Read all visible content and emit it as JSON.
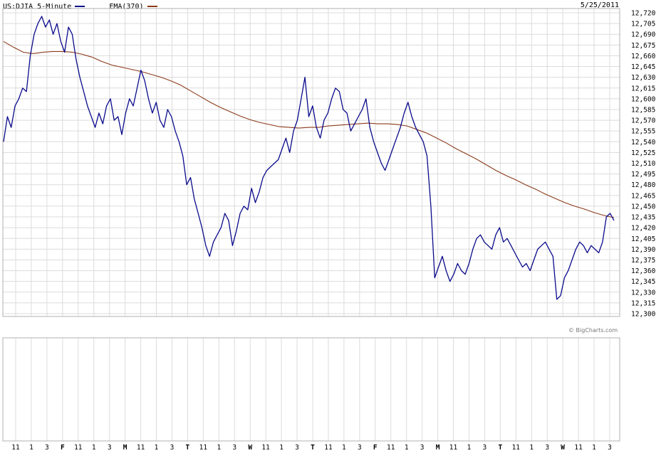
{
  "legend": {
    "series_label": "US:DJIA 5-Minute",
    "ema_label": "EMA(370)"
  },
  "date_label": "5/25/2011",
  "credit": "© BigCharts.com",
  "colors": {
    "price": "#0a0a8c",
    "ema": "#8b3a1a",
    "grid": "#d9d9d9",
    "frame": "#b0b0b0"
  },
  "chart_data": {
    "type": "line",
    "title": "",
    "ylim": [
      12300,
      12720
    ],
    "y_ticks": [
      "12,720",
      "12,705",
      "12,690",
      "12,675",
      "12,660",
      "12,645",
      "12,630",
      "12,615",
      "12,600",
      "12,585",
      "12,570",
      "12,555",
      "12,540",
      "12,525",
      "12,510",
      "12,495",
      "12,480",
      "12,465",
      "12,450",
      "12,435",
      "12,420",
      "12,405",
      "12,390",
      "12,375",
      "12,360",
      "12,345",
      "12,330",
      "12,315",
      "12,300"
    ],
    "x_ticks": [
      {
        "label": "11",
        "bold": false
      },
      {
        "label": "1",
        "bold": false
      },
      {
        "label": "3",
        "bold": false
      },
      {
        "label": "F",
        "bold": true
      },
      {
        "label": "11",
        "bold": false
      },
      {
        "label": "1",
        "bold": false
      },
      {
        "label": "3",
        "bold": false
      },
      {
        "label": "M",
        "bold": true
      },
      {
        "label": "11",
        "bold": false
      },
      {
        "label": "1",
        "bold": false
      },
      {
        "label": "3",
        "bold": false
      },
      {
        "label": "T",
        "bold": true
      },
      {
        "label": "11",
        "bold": false
      },
      {
        "label": "1",
        "bold": false
      },
      {
        "label": "3",
        "bold": false
      },
      {
        "label": "W",
        "bold": true
      },
      {
        "label": "11",
        "bold": false
      },
      {
        "label": "1",
        "bold": false
      },
      {
        "label": "3",
        "bold": false
      },
      {
        "label": "T",
        "bold": true
      },
      {
        "label": "11",
        "bold": false
      },
      {
        "label": "1",
        "bold": false
      },
      {
        "label": "3",
        "bold": false
      },
      {
        "label": "F",
        "bold": true
      },
      {
        "label": "11",
        "bold": false
      },
      {
        "label": "1",
        "bold": false
      },
      {
        "label": "3",
        "bold": false
      },
      {
        "label": "M",
        "bold": true
      },
      {
        "label": "11",
        "bold": false
      },
      {
        "label": "1",
        "bold": false
      },
      {
        "label": "3",
        "bold": false
      },
      {
        "label": "T",
        "bold": true
      },
      {
        "label": "11",
        "bold": false
      },
      {
        "label": "1",
        "bold": false
      },
      {
        "label": "3",
        "bold": false
      },
      {
        "label": "W",
        "bold": true
      },
      {
        "label": "11",
        "bold": false
      },
      {
        "label": "1",
        "bold": false
      },
      {
        "label": "3",
        "bold": false
      }
    ],
    "series": [
      {
        "name": "US:DJIA 5-Minute",
        "values": [
          12540,
          12575,
          12560,
          12590,
          12600,
          12615,
          12610,
          12660,
          12690,
          12705,
          12715,
          12700,
          12710,
          12690,
          12705,
          12680,
          12665,
          12700,
          12690,
          12655,
          12630,
          12610,
          12590,
          12575,
          12560,
          12580,
          12565,
          12590,
          12600,
          12570,
          12575,
          12550,
          12580,
          12600,
          12590,
          12615,
          12640,
          12625,
          12600,
          12580,
          12595,
          12570,
          12560,
          12585,
          12575,
          12555,
          12540,
          12520,
          12480,
          12490,
          12460,
          12440,
          12420,
          12395,
          12380,
          12400,
          12410,
          12420,
          12440,
          12430,
          12395,
          12415,
          12440,
          12450,
          12445,
          12475,
          12455,
          12470,
          12490,
          12500,
          12505,
          12510,
          12515,
          12530,
          12545,
          12525,
          12555,
          12570,
          12600,
          12630,
          12575,
          12590,
          12560,
          12545,
          12570,
          12580,
          12600,
          12615,
          12610,
          12585,
          12580,
          12555,
          12565,
          12575,
          12585,
          12600,
          12560,
          12540,
          12525,
          12510,
          12500,
          12515,
          12530,
          12545,
          12560,
          12580,
          12595,
          12575,
          12560,
          12550,
          12540,
          12520,
          12450,
          12350,
          12365,
          12380,
          12360,
          12345,
          12355,
          12370,
          12360,
          12355,
          12370,
          12390,
          12405,
          12410,
          12400,
          12395,
          12390,
          12410,
          12420,
          12400,
          12405,
          12395,
          12385,
          12375,
          12365,
          12370,
          12360,
          12375,
          12390,
          12395,
          12400,
          12390,
          12380,
          12320,
          12325,
          12350,
          12360,
          12375,
          12390,
          12400,
          12395,
          12385,
          12395,
          12390,
          12385,
          12400,
          12435,
          12440,
          12430
        ]
      },
      {
        "name": "EMA(370)",
        "values": [
          12680,
          12672,
          12665,
          12663,
          12665,
          12666,
          12666,
          12665,
          12662,
          12658,
          12652,
          12647,
          12644,
          12641,
          12638,
          12634,
          12630,
          12625,
          12619,
          12611,
          12603,
          12595,
          12588,
          12582,
          12576,
          12571,
          12567,
          12564,
          12561,
          12560,
          12559,
          12560,
          12560,
          12562,
          12563,
          12564,
          12565,
          12566,
          12565,
          12565,
          12564,
          12562,
          12557,
          12552,
          12545,
          12538,
          12530,
          12523,
          12516,
          12508,
          12500,
          12493,
          12487,
          12480,
          12474,
          12467,
          12461,
          12455,
          12450,
          12446,
          12441,
          12437,
          12434
        ]
      }
    ]
  }
}
